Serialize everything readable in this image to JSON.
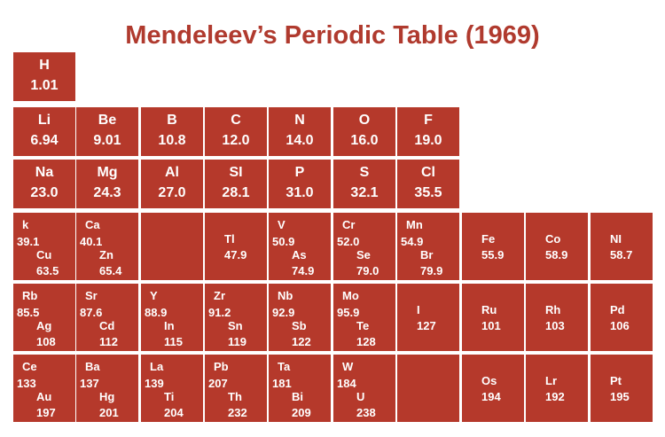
{
  "title": "Mendeleev’s Periodic Table (1969)",
  "cell_color": "#b5392b",
  "title_color": "#b03a2e",
  "rows": [
    {
      "cells": [
        {
          "elements": [
            {
              "symbol": "H",
              "weight": "1.01"
            }
          ]
        }
      ]
    },
    {
      "cells": [
        {
          "elements": [
            {
              "symbol": "Li",
              "weight": "6.94"
            }
          ]
        },
        {
          "elements": [
            {
              "symbol": "Be",
              "weight": "9.01"
            }
          ]
        },
        {
          "elements": [
            {
              "symbol": "B",
              "weight": "10.8"
            }
          ]
        },
        {
          "elements": [
            {
              "symbol": "C",
              "weight": "12.0"
            }
          ]
        },
        {
          "elements": [
            {
              "symbol": "N",
              "weight": "14.0"
            }
          ]
        },
        {
          "elements": [
            {
              "symbol": "O",
              "weight": "16.0"
            }
          ]
        },
        {
          "elements": [
            {
              "symbol": "F",
              "weight": "19.0"
            }
          ]
        }
      ]
    },
    {
      "cells": [
        {
          "elements": [
            {
              "symbol": "Na",
              "weight": "23.0"
            }
          ]
        },
        {
          "elements": [
            {
              "symbol": "Mg",
              "weight": "24.3"
            }
          ]
        },
        {
          "elements": [
            {
              "symbol": "Al",
              "weight": "27.0"
            }
          ]
        },
        {
          "elements": [
            {
              "symbol": "SI",
              "weight": "28.1"
            }
          ]
        },
        {
          "elements": [
            {
              "symbol": "P",
              "weight": "31.0"
            }
          ]
        },
        {
          "elements": [
            {
              "symbol": "S",
              "weight": "32.1"
            }
          ]
        },
        {
          "elements": [
            {
              "symbol": "Cl",
              "weight": "35.5"
            }
          ]
        }
      ]
    },
    {
      "cells": [
        {
          "elements": [
            {
              "symbol": "k",
              "weight": "39.1"
            },
            {
              "symbol": "Cu",
              "weight": "63.5"
            }
          ]
        },
        {
          "elements": [
            {
              "symbol": "Ca",
              "weight": "40.1"
            },
            {
              "symbol": "Zn",
              "weight": "65.4"
            }
          ]
        },
        {
          "elements": []
        },
        {
          "elements": [
            {
              "symbol": "Tl",
              "weight": "47.9"
            }
          ]
        },
        {
          "elements": [
            {
              "symbol": "V",
              "weight": "50.9"
            },
            {
              "symbol": "As",
              "weight": "74.9"
            }
          ]
        },
        {
          "elements": [
            {
              "symbol": "Cr",
              "weight": "52.0"
            },
            {
              "symbol": "Se",
              "weight": "79.0"
            }
          ]
        },
        {
          "elements": [
            {
              "symbol": "Mn",
              "weight": "54.9"
            },
            {
              "symbol": "Br",
              "weight": "79.9"
            }
          ]
        },
        {
          "elements": [
            {
              "symbol": "Fe",
              "weight": "55.9"
            }
          ]
        },
        {
          "elements": [
            {
              "symbol": "Co",
              "weight": "58.9"
            }
          ]
        },
        {
          "elements": [
            {
              "symbol": "NI",
              "weight": "58.7"
            }
          ]
        }
      ]
    },
    {
      "cells": [
        {
          "elements": [
            {
              "symbol": "Rb",
              "weight": "85.5"
            },
            {
              "symbol": "Ag",
              "weight": "108"
            }
          ]
        },
        {
          "elements": [
            {
              "symbol": "Sr",
              "weight": "87.6"
            },
            {
              "symbol": "Cd",
              "weight": "112"
            }
          ]
        },
        {
          "elements": [
            {
              "symbol": "Y",
              "weight": "88.9"
            },
            {
              "symbol": "In",
              "weight": "115"
            }
          ]
        },
        {
          "elements": [
            {
              "symbol": "Zr",
              "weight": "91.2"
            },
            {
              "symbol": "Sn",
              "weight": "119"
            }
          ]
        },
        {
          "elements": [
            {
              "symbol": "Nb",
              "weight": "92.9"
            },
            {
              "symbol": "Sb",
              "weight": "122"
            }
          ]
        },
        {
          "elements": [
            {
              "symbol": "Mo",
              "weight": "95.9"
            },
            {
              "symbol": "Te",
              "weight": "128"
            }
          ]
        },
        {
          "elements": [
            {
              "symbol": "I",
              "weight": "127"
            }
          ]
        },
        {
          "elements": [
            {
              "symbol": "Ru",
              "weight": "101"
            }
          ]
        },
        {
          "elements": [
            {
              "symbol": "Rh",
              "weight": "103"
            }
          ]
        },
        {
          "elements": [
            {
              "symbol": "Pd",
              "weight": "106"
            }
          ]
        }
      ]
    },
    {
      "cells": [
        {
          "elements": [
            {
              "symbol": "Ce",
              "weight": "133"
            },
            {
              "symbol": "Au",
              "weight": "197"
            }
          ]
        },
        {
          "elements": [
            {
              "symbol": "Ba",
              "weight": "137"
            },
            {
              "symbol": "Hg",
              "weight": "201"
            }
          ]
        },
        {
          "elements": [
            {
              "symbol": "La",
              "weight": "139"
            },
            {
              "symbol": "Ti",
              "weight": "204"
            }
          ]
        },
        {
          "elements": [
            {
              "symbol": "Pb",
              "weight": "207"
            },
            {
              "symbol": "Th",
              "weight": "232"
            }
          ]
        },
        {
          "elements": [
            {
              "symbol": "Ta",
              "weight": "181"
            },
            {
              "symbol": "Bi",
              "weight": "209"
            }
          ]
        },
        {
          "elements": [
            {
              "symbol": "W",
              "weight": "184"
            },
            {
              "symbol": "U",
              "weight": "238"
            }
          ]
        },
        {
          "elements": []
        },
        {
          "elements": [
            {
              "symbol": "Os",
              "weight": "194"
            }
          ]
        },
        {
          "elements": [
            {
              "symbol": "Lr",
              "weight": "192"
            }
          ]
        },
        {
          "elements": [
            {
              "symbol": "Pt",
              "weight": "195"
            }
          ]
        }
      ]
    }
  ]
}
